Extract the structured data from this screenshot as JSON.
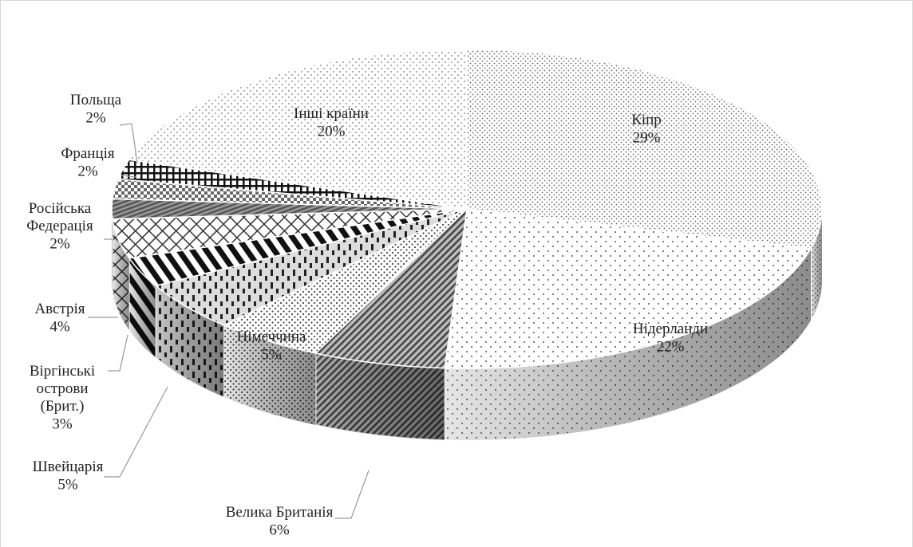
{
  "chart_data": {
    "type": "pie3d",
    "categories": [
      "Кіпр",
      "Нідерланди",
      "Велика Британія",
      "Німеччина",
      "Швейцарія",
      "Віргінські\nострови\n(Брит.)",
      "Австрія",
      "Російська\nФедерація",
      "Франція",
      "Польща",
      "Інші країни"
    ],
    "values": [
      29,
      22,
      6,
      5,
      5,
      3,
      4,
      2,
      2,
      2,
      20
    ],
    "value_labels": [
      "29%",
      "22%",
      "6%",
      "5%",
      "5%",
      "3%",
      "4%",
      "2%",
      "2%",
      "2%",
      "20%"
    ]
  }
}
